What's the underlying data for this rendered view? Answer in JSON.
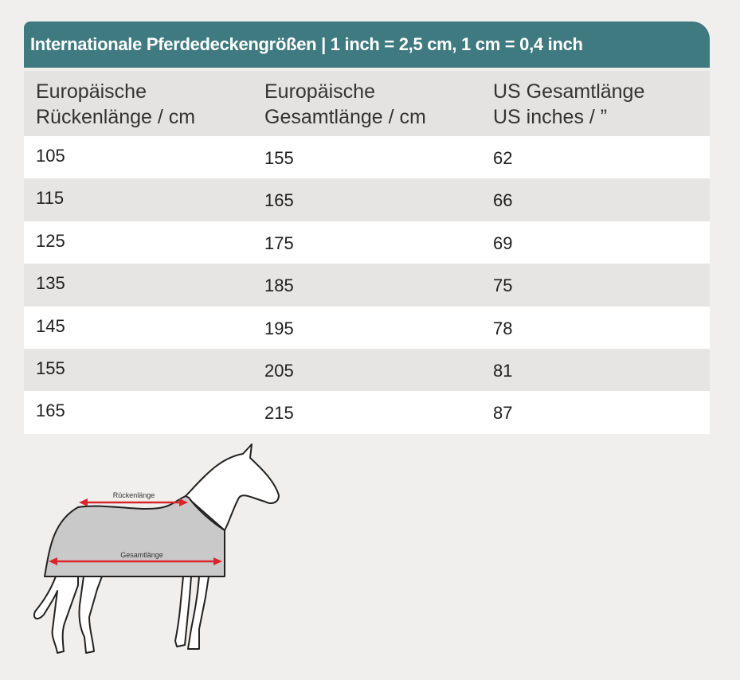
{
  "title": "Internationale Pferdedeckengrößen | 1 inch = 2,5 cm, 1 cm = 0,4 inch",
  "headers": [
    [
      "Europäische",
      "Rückenlänge / cm"
    ],
    [
      "Europäische",
      "Gesamtlänge / cm"
    ],
    [
      "US Gesamtlänge",
      "US inches / ”"
    ]
  ],
  "rows": [
    [
      "105",
      "155",
      "62"
    ],
    [
      "115",
      "165",
      "66"
    ],
    [
      "125",
      "175",
      "69"
    ],
    [
      "135",
      "185",
      "75"
    ],
    [
      "145",
      "195",
      "78"
    ],
    [
      "155",
      "205",
      "81"
    ],
    [
      "165",
      "215",
      "87"
    ]
  ],
  "diagram": {
    "back_length_label": "Rückenlänge",
    "total_length_label": "Gesamtlänge"
  },
  "colors": {
    "accent": "#3f7a80",
    "arrow": "#d9262c",
    "blanket": "#c9c9c9"
  }
}
